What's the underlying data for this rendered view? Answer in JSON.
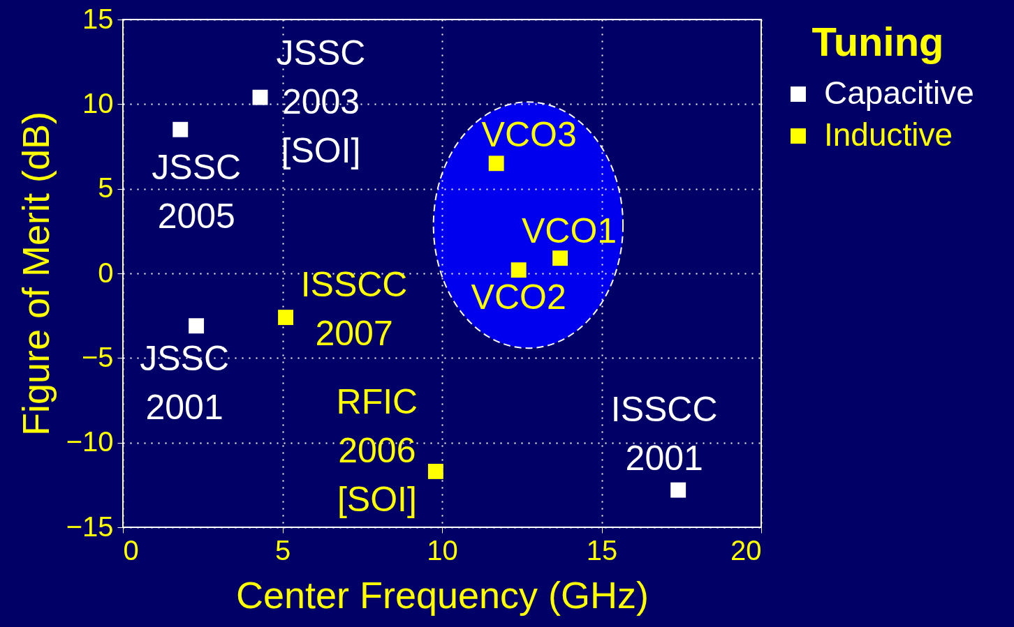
{
  "chart_data": {
    "type": "scatter",
    "xlabel": "Center Frequency (GHz)",
    "ylabel": "Figure of Merit (dB)",
    "legend_title": "Tuning",
    "xlim": [
      0,
      20
    ],
    "ylim": [
      -15,
      15
    ],
    "xticks": [
      0,
      5,
      10,
      15,
      20
    ],
    "yticks": [
      -15,
      -10,
      -5,
      0,
      5,
      10,
      15
    ],
    "grid": true,
    "legend": "top right",
    "marker": "square",
    "series": [
      {
        "name": "Capacitive",
        "color": "#ffffff",
        "x": [
          1.8,
          4.3,
          2.3,
          17.4
        ],
        "values": [
          8.5,
          10.4,
          -3.1,
          -12.8
        ]
      },
      {
        "name": "Inductive",
        "color": "#ffff00",
        "x": [
          5.1,
          9.8,
          11.7,
          12.4,
          13.7
        ],
        "values": [
          -2.6,
          -11.7,
          6.5,
          0.2,
          0.9
        ]
      }
    ],
    "annotations": [
      {
        "text": "JSSC\n2003\n[SOI]",
        "x": 4.3,
        "y": 10.4
      },
      {
        "text": "JSSC\n2005",
        "x": 1.8,
        "y": 8.5
      },
      {
        "text": "JSSC\n2001",
        "x": 2.3,
        "y": -3.1
      },
      {
        "text": "ISSCC\n2007",
        "x": 5.1,
        "y": -2.6
      },
      {
        "text": "RFIC\n2006\n[SOI]",
        "x": 9.8,
        "y": -11.7
      },
      {
        "text": "ISSCC\n2001",
        "x": 17.4,
        "y": -12.8
      },
      {
        "text": "VCO3",
        "x": 11.7,
        "y": 6.5
      },
      {
        "text": "VCO1",
        "x": 13.7,
        "y": 0.9
      },
      {
        "text": "VCO2",
        "x": 12.4,
        "y": 0.2
      }
    ]
  }
}
